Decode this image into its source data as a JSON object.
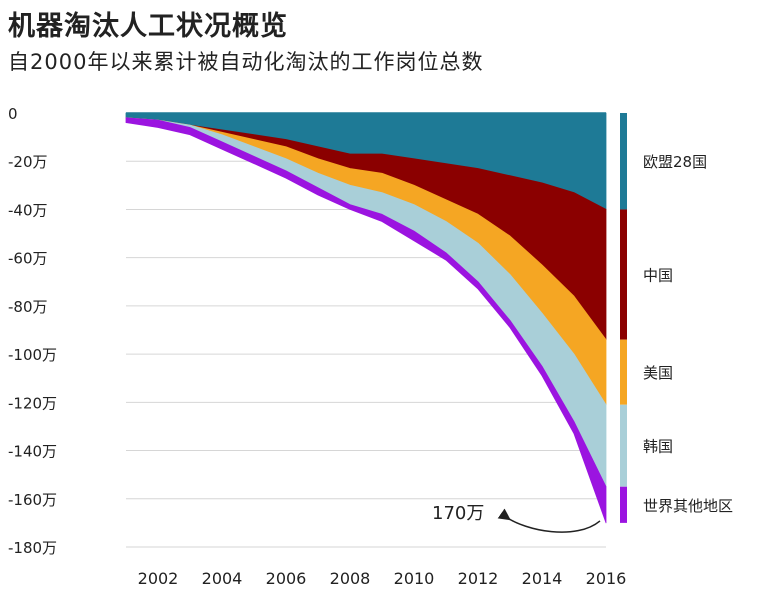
{
  "title": "机器淘汰人工状况概览",
  "subtitle": "自2000年以来累计被自动化淘汰的工作岗位总数",
  "chart_data": {
    "type": "area",
    "stacked": true,
    "x": [
      2001,
      2002,
      2003,
      2004,
      2005,
      2006,
      2007,
      2008,
      2009,
      2010,
      2011,
      2012,
      2013,
      2014,
      2015,
      2016
    ],
    "ylim": [
      -180,
      0
    ],
    "y_ticks": [
      0,
      -20,
      -40,
      -60,
      -80,
      -100,
      -120,
      -140,
      -160,
      -180
    ],
    "y_tick_labels": [
      "0",
      "-20万",
      "-40万",
      "-60万",
      "-80万",
      "-100万",
      "-120万",
      "-140万",
      "-160万",
      "-180万"
    ],
    "x_tick_labels": [
      "2002",
      "2004",
      "2006",
      "2008",
      "2010",
      "2012",
      "2014",
      "2016"
    ],
    "series": [
      {
        "name": "欧盟28国",
        "color": "#1e7a96",
        "values": [
          -2,
          -3,
          -5,
          -7,
          -9,
          -11,
          -14,
          -17,
          -17,
          -19,
          -21,
          -23,
          -26,
          -29,
          -33,
          -40
        ]
      },
      {
        "name": "中国",
        "color": "#8b0000",
        "values": [
          0,
          0,
          0,
          -1,
          -2,
          -3,
          -5,
          -6,
          -8,
          -11,
          -15,
          -19,
          -25,
          -34,
          -43,
          -54
        ]
      },
      {
        "name": "美国",
        "color": "#f5a623",
        "values": [
          0,
          0,
          0,
          -1,
          -3,
          -5,
          -6,
          -7,
          -8,
          -8,
          -9,
          -12,
          -16,
          -20,
          -24,
          -27
        ]
      },
      {
        "name": "韩国",
        "color": "#a9cfd8",
        "values": [
          0,
          0,
          -1,
          -3,
          -4,
          -5,
          -6,
          -8,
          -9,
          -11,
          -13,
          -16,
          -19,
          -22,
          -28,
          -34
        ]
      },
      {
        "name": "世界其他地区",
        "color": "#9b14e0",
        "values": [
          -2,
          -3,
          -3,
          -3,
          -3,
          -3,
          -3,
          -2,
          -3,
          -4,
          -3,
          -3,
          -3,
          -4,
          -5,
          -15
        ]
      }
    ],
    "annotation": {
      "text": "170万",
      "x": 2016,
      "y": -170
    },
    "grid": true,
    "legend_position": "right"
  }
}
